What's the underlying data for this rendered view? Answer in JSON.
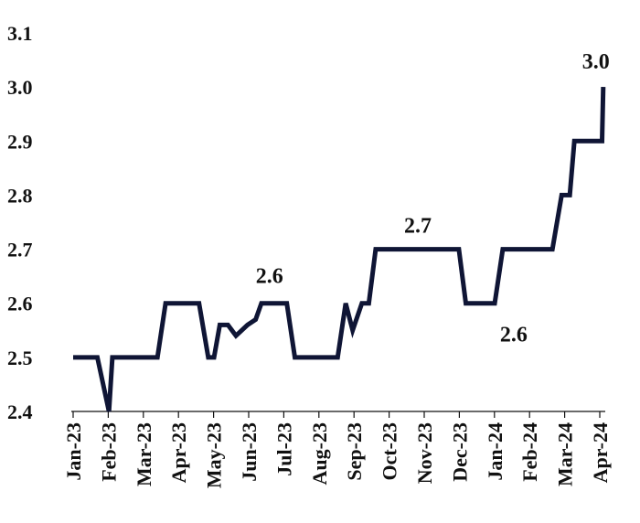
{
  "chart_data": {
    "type": "line",
    "title": "",
    "xlabel": "",
    "ylabel": "",
    "ylim": [
      2.4,
      3.1
    ],
    "yticks": [
      "2.4",
      "2.5",
      "2.6",
      "2.7",
      "2.8",
      "2.9",
      "3.0",
      "3.1"
    ],
    "xticks": [
      "Jan-23",
      "Feb-23",
      "Mar-23",
      "Apr-23",
      "May-23",
      "Jun-23",
      "Jul-23",
      "Aug-23",
      "Sep-23",
      "Oct-23",
      "Nov-23",
      "Dec-23",
      "Jan-24",
      "Feb-24",
      "Mar-24",
      "Apr-24"
    ],
    "grid": false,
    "legend": "none",
    "line_color": "#0f1535",
    "series": [
      {
        "points": [
          [
            "2023-01-01",
            2.5
          ],
          [
            "2023-01-22",
            2.5
          ],
          [
            "2023-02-01",
            2.4
          ],
          [
            "2023-02-04",
            2.5
          ],
          [
            "2023-03-15",
            2.5
          ],
          [
            "2023-03-22",
            2.6
          ],
          [
            "2023-04-20",
            2.6
          ],
          [
            "2023-04-28",
            2.5
          ],
          [
            "2023-05-03",
            2.5
          ],
          [
            "2023-05-08",
            2.56
          ],
          [
            "2023-05-15",
            2.56
          ],
          [
            "2023-05-22",
            2.54
          ],
          [
            "2023-06-01",
            2.56
          ],
          [
            "2023-06-08",
            2.57
          ],
          [
            "2023-06-13",
            2.6
          ],
          [
            "2023-06-22",
            2.6
          ],
          [
            "2023-07-05",
            2.6
          ],
          [
            "2023-07-12",
            2.5
          ],
          [
            "2023-08-18",
            2.5
          ],
          [
            "2023-08-25",
            2.6
          ],
          [
            "2023-08-31",
            2.55
          ],
          [
            "2023-09-08",
            2.6
          ],
          [
            "2023-09-14",
            2.6
          ],
          [
            "2023-09-20",
            2.7
          ],
          [
            "2023-12-01",
            2.7
          ],
          [
            "2023-12-07",
            2.6
          ],
          [
            "2024-01-01",
            2.6
          ],
          [
            "2024-01-08",
            2.7
          ],
          [
            "2024-02-20",
            2.7
          ],
          [
            "2024-02-28",
            2.8
          ],
          [
            "2024-03-06",
            2.8
          ],
          [
            "2024-03-10",
            2.9
          ],
          [
            "2024-04-03",
            2.9
          ],
          [
            "2024-04-04",
            3.0
          ]
        ]
      }
    ],
    "annotations": [
      {
        "text": "2.6",
        "x": "2023-06-20",
        "y": 2.6
      },
      {
        "text": "2.7",
        "x": "2023-10-28",
        "y": 2.7
      },
      {
        "text": "2.6",
        "x": "2024-01-08",
        "y": 2.6
      },
      {
        "text": "3.0",
        "x": "2024-04-04",
        "y": 3.0
      }
    ]
  }
}
